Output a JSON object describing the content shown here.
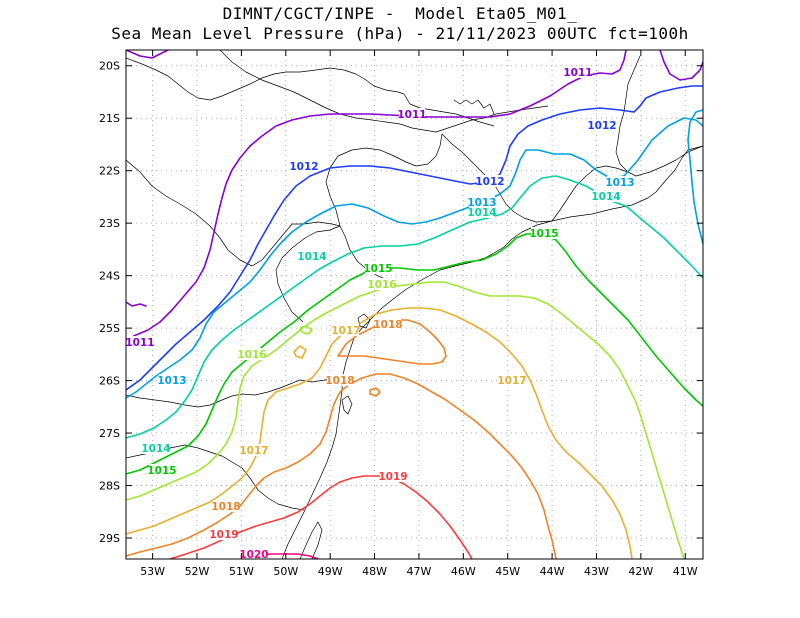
{
  "header": {
    "line1": "DIMNT/CGCT/INPE -  Model Eta05_M01_",
    "line2": "Sea Mean Level Pressure (hPa) - 21/11/2023 00UTC fct=100h"
  },
  "chart_data": {
    "type": "contour-map",
    "variable": "Sea Mean Level Pressure (hPa)",
    "lon_range": [
      -53.6,
      -40.6
    ],
    "lat_range": [
      -29.4,
      -19.7
    ],
    "lon_ticks": [
      "53W",
      "52W",
      "51W",
      "50W",
      "49W",
      "48W",
      "47W",
      "46W",
      "45W",
      "44W",
      "43W",
      "42W",
      "41W"
    ],
    "lat_ticks": [
      "20S",
      "21S",
      "22S",
      "23S",
      "24S",
      "25S",
      "26S",
      "27S",
      "28S",
      "29S"
    ],
    "grid": true,
    "isobars": [
      {
        "level": 1011,
        "color": "#8a00d4",
        "labels": [
          "1011",
          "1011",
          "1011"
        ]
      },
      {
        "level": 1012,
        "color": "#1e3cff",
        "labels": [
          "1012",
          "1012",
          "1012"
        ]
      },
      {
        "level": 1013,
        "color": "#00a0e6",
        "labels": [
          "1013",
          "1013",
          "1013"
        ]
      },
      {
        "level": 1014,
        "color": "#00d2a0",
        "labels": [
          "1014",
          "1014",
          "1014",
          "1014"
        ]
      },
      {
        "level": 1015,
        "color": "#00c800",
        "labels": [
          "1015",
          "1015",
          "1015"
        ]
      },
      {
        "level": 1016,
        "color": "#a0e632",
        "labels": [
          "1016",
          "1016"
        ]
      },
      {
        "level": 1017,
        "color": "#e6af2d",
        "labels": [
          "1017",
          "1017",
          "1017"
        ]
      },
      {
        "level": 1018,
        "color": "#f08228",
        "labels": [
          "1018",
          "1018",
          "1018"
        ]
      },
      {
        "level": 1019,
        "color": "#fa3c3c",
        "labels": [
          "1019",
          "1019"
        ]
      },
      {
        "level": 1020,
        "color": "#f00082",
        "labels": [
          "1020"
        ]
      }
    ],
    "colors": {
      "coast": "#000000",
      "grid": "#aaaaaa",
      "frame": "#000000"
    }
  }
}
